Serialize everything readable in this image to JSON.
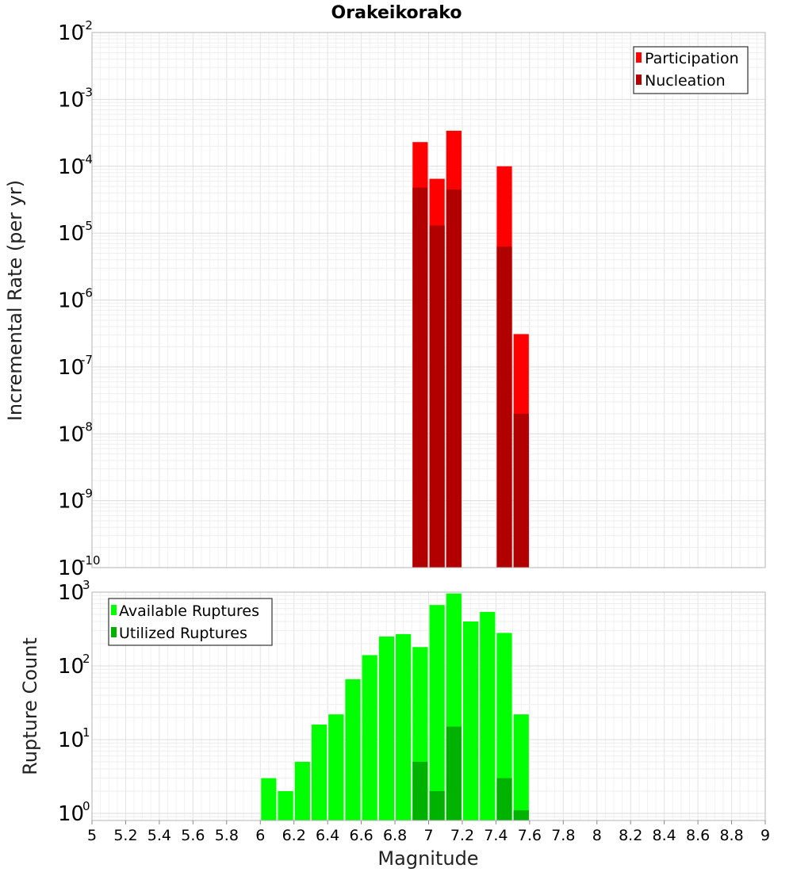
{
  "title": "Orakeikorako",
  "chart_data": [
    {
      "type": "bar",
      "ylabel": "Incremental Rate (per yr)",
      "yscale": "log",
      "ylim": [
        1e-10,
        0.01
      ],
      "xlim": [
        5,
        9
      ],
      "grid": true,
      "legend_position": "top-right",
      "y_ticks": [
        {
          "base": "10",
          "exp": "-2"
        },
        {
          "base": "10",
          "exp": "-3"
        },
        {
          "base": "10",
          "exp": "-4"
        },
        {
          "base": "10",
          "exp": "-5"
        },
        {
          "base": "10",
          "exp": "-6"
        },
        {
          "base": "10",
          "exp": "-7"
        },
        {
          "base": "10",
          "exp": "-8"
        },
        {
          "base": "10",
          "exp": "-9"
        },
        {
          "base": "10",
          "exp": "-10"
        }
      ],
      "x": [
        6.95,
        7.05,
        7.15,
        7.45,
        7.55
      ],
      "series": [
        {
          "name": "Participation",
          "color": "#ff0000",
          "values": [
            0.00023,
            6.5e-05,
            0.00034,
            0.0001,
            3.1e-07
          ]
        },
        {
          "name": "Nucleation",
          "color": "#b20000",
          "values": [
            4.8e-05,
            1.3e-05,
            4.5e-05,
            6.3e-06,
            2e-08
          ]
        }
      ]
    },
    {
      "type": "bar",
      "ylabel": "Rupture Count",
      "xlabel": "Magnitude",
      "yscale": "log",
      "ylim": [
        0.8,
        1000
      ],
      "xlim": [
        5,
        9
      ],
      "grid": true,
      "legend_position": "top-left",
      "y_ticks": [
        {
          "base": "10",
          "exp": "3"
        },
        {
          "base": "10",
          "exp": "2"
        },
        {
          "base": "10",
          "exp": "1"
        },
        {
          "base": "10",
          "exp": "0"
        }
      ],
      "x_ticks": [
        "5",
        "5.2",
        "5.4",
        "5.6",
        "5.8",
        "6",
        "6.2",
        "6.4",
        "6.6",
        "6.8",
        "7",
        "7.2",
        "7.4",
        "7.6",
        "7.8",
        "8",
        "8.2",
        "8.4",
        "8.6",
        "8.8",
        "9"
      ],
      "x": [
        6.05,
        6.15,
        6.25,
        6.35,
        6.45,
        6.55,
        6.65,
        6.75,
        6.85,
        6.95,
        7.05,
        7.15,
        7.25,
        7.35,
        7.45,
        7.55
      ],
      "series": [
        {
          "name": "Available Ruptures",
          "color": "#00ff00",
          "values": [
            3,
            2,
            5,
            16,
            22,
            66,
            140,
            250,
            270,
            180,
            670,
            960,
            400,
            540,
            280,
            22
          ]
        },
        {
          "name": "Utilized Ruptures",
          "color": "#00b200",
          "values": [
            null,
            null,
            null,
            null,
            null,
            null,
            null,
            null,
            null,
            5,
            2,
            15,
            null,
            null,
            3,
            1.1
          ]
        }
      ]
    }
  ]
}
